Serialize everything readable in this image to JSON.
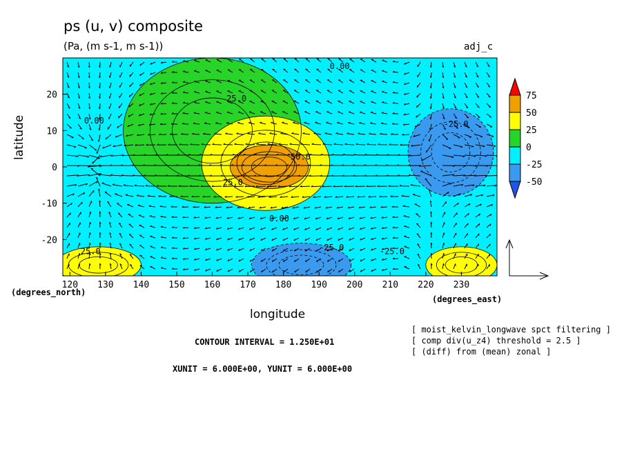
{
  "title": "ps (u, v) composite",
  "subtitle": "(Pa, (m s-1, m s-1))",
  "tag": "adj_c",
  "xlabel": "longitude",
  "ylabel": "latitude",
  "x_unit_label": "(degrees_east)",
  "y_unit_label": "(degrees_north)",
  "contour_interval": "CONTOUR INTERVAL = 1.250E+01",
  "units_line": "XUNIT = 6.000E+00, YUNIT = 6.000E+00",
  "notes": [
    "[ moist_kelvin_longwave spct filtering ]",
    "[ comp div(u_z4) threshold = 2.5 ]",
    "[ (diff) from (mean) zonal ]"
  ],
  "colors": {
    "lt_neg50": "#1e56e6",
    "neg50_neg25": "#3a9af0",
    "neg25_0": "#00f0ff",
    "0_25": "#27d427",
    "25_50": "#ffff00",
    "50_75": "#f0a000",
    "gt_75": "#ff0000"
  },
  "chart_data": {
    "type": "heatmap",
    "overlay": "vector",
    "xlim": [
      118,
      240
    ],
    "ylim": [
      -30,
      30
    ],
    "x_ticks": [
      120,
      130,
      140,
      150,
      160,
      170,
      180,
      190,
      200,
      210,
      220,
      230
    ],
    "y_ticks": [
      20,
      10,
      0,
      -10,
      -20
    ],
    "colorbar_levels": [
      "75",
      "50",
      "25",
      "0",
      "-25",
      "-50"
    ],
    "contour_labels": [
      {
        "text": "0.00",
        "x": 193,
        "y": 27
      },
      {
        "text": "0.00",
        "x": 176,
        "y": -15
      },
      {
        "text": "0.00",
        "x": 124,
        "y": 12
      },
      {
        "text": "25.0",
        "x": 164,
        "y": 18
      },
      {
        "text": "25.0",
        "x": 163,
        "y": -5
      },
      {
        "text": "-25.0",
        "x": 190,
        "y": -23
      },
      {
        "text": "-25.0",
        "x": 207,
        "y": -24
      },
      {
        "text": "-25.0",
        "x": 225,
        "y": 11
      },
      {
        "text": "50.0",
        "x": 182,
        "y": 2
      },
      {
        "text": "25.0",
        "x": 123,
        "y": -24
      }
    ],
    "field_regions": [
      {
        "level": "0_25",
        "center": [
          160,
          10
        ],
        "radius": [
          25,
          20
        ]
      },
      {
        "level": "25_50",
        "center": [
          175,
          1
        ],
        "radius": [
          18,
          13
        ]
      },
      {
        "level": "50_75",
        "center": [
          176,
          0
        ],
        "radius": [
          11,
          6
        ]
      },
      {
        "level": "neg50_neg25",
        "center": [
          227,
          4
        ],
        "radius": [
          12,
          12
        ]
      },
      {
        "level": "neg50_neg25",
        "center": [
          185,
          -27
        ],
        "radius": [
          14,
          6
        ]
      },
      {
        "level": "25_50",
        "center": [
          128,
          -27
        ],
        "radius": [
          12,
          5
        ]
      },
      {
        "level": "25_50",
        "center": [
          230,
          -27
        ],
        "radius": [
          10,
          5
        ]
      }
    ]
  }
}
